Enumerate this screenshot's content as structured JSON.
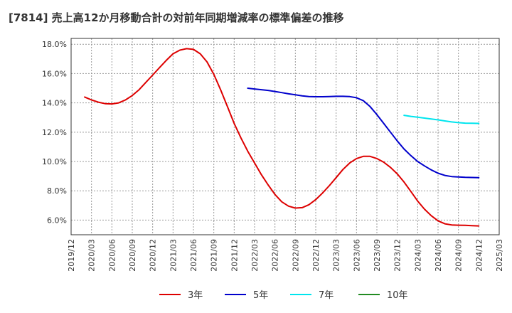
{
  "chart_data": {
    "type": "line",
    "title": "[7814]  売上高12か月移動合計の対前年同期増減率の標準偏差の推移",
    "xlabel": "",
    "ylabel": "",
    "ylim": [
      5.0,
      18.4
    ],
    "grid": true,
    "legend_position": "bottom",
    "y_ticks": [
      "6.0%",
      "8.0%",
      "10.0%",
      "12.0%",
      "14.0%",
      "16.0%",
      "18.0%"
    ],
    "y_tick_values": [
      6,
      8,
      10,
      12,
      14,
      16,
      18
    ],
    "x_ticks": [
      "2019/12",
      "2020/03",
      "2020/06",
      "2020/09",
      "2020/12",
      "2021/03",
      "2021/06",
      "2021/09",
      "2021/12",
      "2022/03",
      "2022/06",
      "2022/09",
      "2022/12",
      "2023/03",
      "2023/06",
      "2023/09",
      "2023/12",
      "2024/03",
      "2024/06",
      "2024/09",
      "2024/12",
      "2025/03"
    ],
    "series": [
      {
        "name": "3年",
        "color": "#dd0000",
        "points": [
          [
            "2020/02",
            14.4
          ],
          [
            "2020/03",
            14.2
          ],
          [
            "2020/04",
            14.05
          ],
          [
            "2020/05",
            13.95
          ],
          [
            "2020/06",
            13.93
          ],
          [
            "2020/07",
            14.0
          ],
          [
            "2020/08",
            14.2
          ],
          [
            "2020/09",
            14.5
          ],
          [
            "2020/10",
            14.9
          ],
          [
            "2020/11",
            15.4
          ],
          [
            "2020/12",
            15.9
          ],
          [
            "2021/01",
            16.4
          ],
          [
            "2021/02",
            16.9
          ],
          [
            "2021/03",
            17.35
          ],
          [
            "2021/04",
            17.6
          ],
          [
            "2021/05",
            17.7
          ],
          [
            "2021/06",
            17.65
          ],
          [
            "2021/07",
            17.35
          ],
          [
            "2021/08",
            16.8
          ],
          [
            "2021/09",
            15.95
          ],
          [
            "2021/10",
            14.9
          ],
          [
            "2021/11",
            13.75
          ],
          [
            "2021/12",
            12.6
          ],
          [
            "2022/01",
            11.6
          ],
          [
            "2022/02",
            10.7
          ],
          [
            "2022/03",
            9.9
          ],
          [
            "2022/04",
            9.1
          ],
          [
            "2022/05",
            8.4
          ],
          [
            "2022/06",
            7.75
          ],
          [
            "2022/07",
            7.25
          ],
          [
            "2022/08",
            6.95
          ],
          [
            "2022/09",
            6.82
          ],
          [
            "2022/10",
            6.85
          ],
          [
            "2022/11",
            7.05
          ],
          [
            "2022/12",
            7.4
          ],
          [
            "2023/01",
            7.85
          ],
          [
            "2023/02",
            8.35
          ],
          [
            "2023/03",
            8.9
          ],
          [
            "2023/04",
            9.45
          ],
          [
            "2023/05",
            9.9
          ],
          [
            "2023/06",
            10.2
          ],
          [
            "2023/07",
            10.35
          ],
          [
            "2023/08",
            10.35
          ],
          [
            "2023/09",
            10.2
          ],
          [
            "2023/10",
            9.95
          ],
          [
            "2023/11",
            9.6
          ],
          [
            "2023/12",
            9.15
          ],
          [
            "2024/01",
            8.6
          ],
          [
            "2024/02",
            7.95
          ],
          [
            "2024/03",
            7.3
          ],
          [
            "2024/04",
            6.75
          ],
          [
            "2024/05",
            6.3
          ],
          [
            "2024/06",
            5.95
          ],
          [
            "2024/07",
            5.75
          ],
          [
            "2024/08",
            5.67
          ],
          [
            "2024/09",
            5.65
          ],
          [
            "2024/10",
            5.64
          ],
          [
            "2024/11",
            5.62
          ],
          [
            "2024/12",
            5.6
          ]
        ]
      },
      {
        "name": "5年",
        "color": "#0000cc",
        "points": [
          [
            "2022/02",
            15.0
          ],
          [
            "2022/03",
            14.95
          ],
          [
            "2022/04",
            14.9
          ],
          [
            "2022/05",
            14.85
          ],
          [
            "2022/06",
            14.78
          ],
          [
            "2022/07",
            14.7
          ],
          [
            "2022/08",
            14.62
          ],
          [
            "2022/09",
            14.55
          ],
          [
            "2022/10",
            14.48
          ],
          [
            "2022/11",
            14.43
          ],
          [
            "2022/12",
            14.42
          ],
          [
            "2023/01",
            14.42
          ],
          [
            "2023/02",
            14.43
          ],
          [
            "2023/03",
            14.45
          ],
          [
            "2023/04",
            14.45
          ],
          [
            "2023/05",
            14.43
          ],
          [
            "2023/06",
            14.35
          ],
          [
            "2023/07",
            14.15
          ],
          [
            "2023/08",
            13.75
          ],
          [
            "2023/09",
            13.2
          ],
          [
            "2023/10",
            12.6
          ],
          [
            "2023/11",
            12.0
          ],
          [
            "2023/12",
            11.4
          ],
          [
            "2024/01",
            10.85
          ],
          [
            "2024/02",
            10.4
          ],
          [
            "2024/03",
            10.0
          ],
          [
            "2024/04",
            9.7
          ],
          [
            "2024/05",
            9.43
          ],
          [
            "2024/06",
            9.2
          ],
          [
            "2024/07",
            9.05
          ],
          [
            "2024/08",
            8.97
          ],
          [
            "2024/09",
            8.94
          ],
          [
            "2024/10",
            8.92
          ],
          [
            "2024/11",
            8.91
          ],
          [
            "2024/12",
            8.9
          ]
        ]
      },
      {
        "name": "7年",
        "color": "#00e5ee",
        "points": [
          [
            "2024/01",
            13.15
          ],
          [
            "2024/02",
            13.08
          ],
          [
            "2024/03",
            13.02
          ],
          [
            "2024/04",
            12.96
          ],
          [
            "2024/05",
            12.9
          ],
          [
            "2024/06",
            12.84
          ],
          [
            "2024/07",
            12.77
          ],
          [
            "2024/08",
            12.7
          ],
          [
            "2024/09",
            12.65
          ],
          [
            "2024/10",
            12.62
          ],
          [
            "2024/11",
            12.61
          ],
          [
            "2024/12",
            12.6
          ]
        ]
      },
      {
        "name": "10年",
        "color": "#228b22",
        "points": []
      }
    ]
  }
}
